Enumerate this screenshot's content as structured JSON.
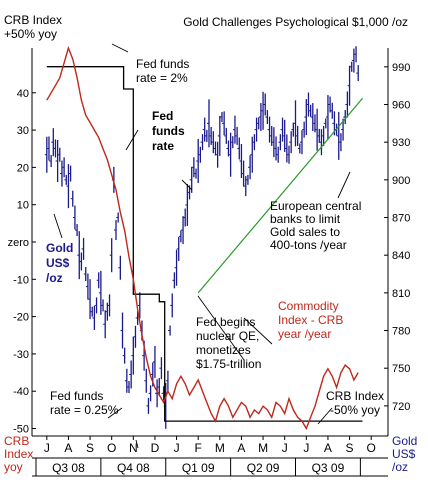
{
  "chart_data": {
    "type": "line",
    "title": "Gold Challenges Psychological $1,000 /oz",
    "x_months": [
      "J",
      "A",
      "S",
      "O",
      "N",
      "D",
      "J",
      "F",
      "M",
      "A",
      "M",
      "J",
      "J",
      "A",
      "S",
      "O"
    ],
    "quarters": [
      "Q3 08",
      "Q4 08",
      "Q1 09",
      "Q2 09",
      "Q3 09"
    ],
    "left_axis": {
      "label_lines": [
        "CRB",
        "Index",
        "yoy"
      ],
      "ticks": [
        "40",
        "30",
        "20",
        "10",
        "zero",
        "-10",
        "-20",
        "-30",
        "-40",
        "-50"
      ],
      "tick_values": [
        40,
        30,
        20,
        10,
        0,
        -10,
        -20,
        -30,
        -40,
        -50
      ],
      "ylim": [
        -52,
        52
      ]
    },
    "right_axis": {
      "label_lines": [
        "Gold",
        "US$",
        "/oz"
      ],
      "ticks": [
        "990",
        "960",
        "930",
        "900",
        "870",
        "840",
        "810",
        "780",
        "750",
        "720"
      ],
      "tick_values": [
        990,
        960,
        930,
        900,
        870,
        840,
        810,
        780,
        750,
        720
      ],
      "ylim": [
        696,
        1005
      ]
    },
    "series": [
      {
        "name": "Commodity Index - CRB year /year",
        "axis": "left",
        "color": "#c0281c",
        "x": [
          0,
          0.2,
          0.4,
          0.6,
          0.8,
          1.0,
          1.2,
          1.4,
          1.6,
          1.8,
          2.0,
          2.2,
          2.4,
          2.6,
          2.8,
          3.0,
          3.2,
          3.4,
          3.6,
          3.8,
          4.0,
          4.2,
          4.4,
          4.6,
          4.8,
          5.0,
          5.2,
          5.4,
          5.6,
          5.8,
          6.0,
          6.2,
          6.4,
          6.6,
          6.8,
          7.0,
          7.2,
          7.4,
          7.6,
          7.8,
          8.0,
          8.2,
          8.4,
          8.6,
          8.8,
          9.0,
          9.2,
          9.4,
          9.6,
          9.8,
          10.0,
          10.2,
          10.4,
          10.6,
          10.8,
          11.0,
          11.2,
          11.4,
          11.6,
          11.8,
          12.0,
          12.2,
          12.4,
          12.6,
          12.8,
          13.0,
          13.2,
          13.4,
          13.6,
          13.8,
          14.0,
          14.2,
          14.4
        ],
        "y": [
          38,
          40,
          42,
          44,
          48,
          52,
          49,
          44,
          38,
          34,
          32,
          30,
          28,
          25,
          22,
          18,
          14,
          8,
          3,
          -4,
          -10,
          -18,
          -25,
          -31,
          -36,
          -39,
          -41,
          -43,
          -40,
          -42,
          -38,
          -36,
          -38,
          -41,
          -39,
          -37,
          -40,
          -43,
          -46,
          -48,
          -44,
          -42,
          -44,
          -47,
          -45,
          -43,
          -44,
          -47,
          -45,
          -46,
          -44,
          -45,
          -47,
          -43,
          -44,
          -46,
          -42,
          -45,
          -47,
          -48,
          -50,
          -47,
          -44,
          -40,
          -36,
          -34,
          -36,
          -39,
          -35,
          -33,
          -34,
          -37,
          -35
        ]
      },
      {
        "name": "Gold US$ /oz",
        "axis": "right",
        "color": "#1a1a8c",
        "x": [
          0.0,
          0.1,
          0.2,
          0.3,
          0.4,
          0.5,
          0.6,
          0.7,
          0.8,
          0.9,
          1.0,
          1.1,
          1.2,
          1.3,
          1.4,
          1.5,
          1.6,
          1.7,
          1.8,
          1.9,
          2.0,
          2.1,
          2.2,
          2.3,
          2.4,
          2.5,
          2.6,
          2.7,
          2.8,
          2.9,
          3.0,
          3.1,
          3.2,
          3.3,
          3.4,
          3.5,
          3.6,
          3.7,
          3.8,
          3.9,
          4.0,
          4.1,
          4.2,
          4.3,
          4.4,
          4.5,
          4.6,
          4.7,
          4.8,
          4.9,
          5.0,
          5.1,
          5.2,
          5.3,
          5.4,
          5.5,
          5.6,
          5.7,
          5.8,
          5.9,
          6.0,
          6.1,
          6.2,
          6.3,
          6.4,
          6.5,
          6.6,
          6.7,
          6.8,
          6.9,
          7.0,
          7.1,
          7.2,
          7.3,
          7.4,
          7.5,
          7.6,
          7.7,
          7.8,
          7.9,
          8.0,
          8.1,
          8.2,
          8.3,
          8.4,
          8.5,
          8.6,
          8.7,
          8.8,
          8.9,
          9.0,
          9.1,
          9.2,
          9.3,
          9.4,
          9.5,
          9.6,
          9.7,
          9.8,
          9.9,
          10.0,
          10.1,
          10.2,
          10.3,
          10.4,
          10.5,
          10.6,
          10.7,
          10.8,
          10.9,
          11.0,
          11.1,
          11.2,
          11.3,
          11.4,
          11.5,
          11.6,
          11.7,
          11.8,
          11.9,
          12.0,
          12.1,
          12.2,
          12.3,
          12.4,
          12.5,
          12.6,
          12.7,
          12.8,
          12.9,
          13.0,
          13.1,
          13.2,
          13.3,
          13.4,
          13.5,
          13.6,
          13.7,
          13.8,
          13.9,
          14.0,
          14.1,
          14.2,
          14.3,
          14.4
        ],
        "y": [
          920,
          925,
          915,
          930,
          925,
          915,
          920,
          905,
          910,
          900,
          895,
          905,
          885,
          870,
          860,
          840,
          835,
          845,
          825,
          815,
          805,
          795,
          790,
          800,
          820,
          810,
          800,
          785,
          795,
          800,
          840,
          900,
          860,
          870,
          830,
          780,
          760,
          740,
          735,
          745,
          760,
          775,
          790,
          800,
          780,
          760,
          740,
          720,
          730,
          745,
          755,
          730,
          735,
          750,
          730,
          720,
          740,
          780,
          800,
          820,
          830,
          845,
          855,
          860,
          870,
          880,
          890,
          900,
          910,
          905,
          915,
          920,
          930,
          940,
          935,
          945,
          935,
          930,
          925,
          920,
          935,
          950,
          945,
          935,
          925,
          920,
          930,
          940,
          935,
          925,
          915,
          905,
          895,
          900,
          910,
          920,
          930,
          940,
          945,
          950,
          955,
          960,
          950,
          940,
          935,
          930,
          925,
          920,
          930,
          940,
          935,
          925,
          920,
          930,
          940,
          945,
          935,
          925,
          930,
          940,
          950,
          960,
          955,
          950,
          945,
          940,
          935,
          930,
          935,
          945,
          950,
          960,
          955,
          945,
          940,
          935,
          930,
          940,
          950,
          960,
          975,
          990,
          995,
          1000,
          985
        ]
      }
    ],
    "trendline": {
      "name": "European central banks to limit Gold sales to 400-tons /year",
      "axis": "right",
      "color": "#2a9a2a",
      "x": [
        7.0,
        14.6
      ],
      "y": [
        810,
        965
      ]
    },
    "step_line": {
      "name": "Fed funds rate",
      "axis": "left",
      "color": "#000000",
      "x": [
        0,
        3.55,
        3.55,
        4.0,
        4.0,
        5.2,
        5.2,
        5.45,
        5.45,
        14.6
      ],
      "y": [
        47,
        47,
        41,
        41,
        -14,
        -14,
        -16,
        -16,
        -48,
        -48
      ]
    },
    "annotations": [
      {
        "id": "crb-plus50",
        "lines": [
          "CRB Index",
          "+50% yoy"
        ]
      },
      {
        "id": "fed-2pct",
        "lines": [
          "Fed funds",
          "rate = 2%"
        ]
      },
      {
        "id": "fed-funds-rate",
        "lines": [
          "Fed",
          "funds",
          "rate"
        ]
      },
      {
        "id": "gold-series-label",
        "lines": [
          "Gold",
          "US$",
          "/oz"
        ]
      },
      {
        "id": "ecb-note",
        "lines": [
          "European central",
          "banks to limit",
          "Gold sales to",
          "400-tons /year"
        ]
      },
      {
        "id": "fed-qe",
        "lines": [
          "Fed begins",
          "nuclear QE,",
          "monetizes",
          "$1.75-trillion"
        ]
      },
      {
        "id": "crb-series-label",
        "lines": [
          "Commodity",
          "Index - CRB",
          "year /year"
        ]
      },
      {
        "id": "fed-025",
        "lines": [
          "Fed funds",
          "rate = 0.25%"
        ]
      },
      {
        "id": "crb-minus50",
        "lines": [
          "CRB Index",
          "-50% yoy"
        ]
      }
    ]
  }
}
